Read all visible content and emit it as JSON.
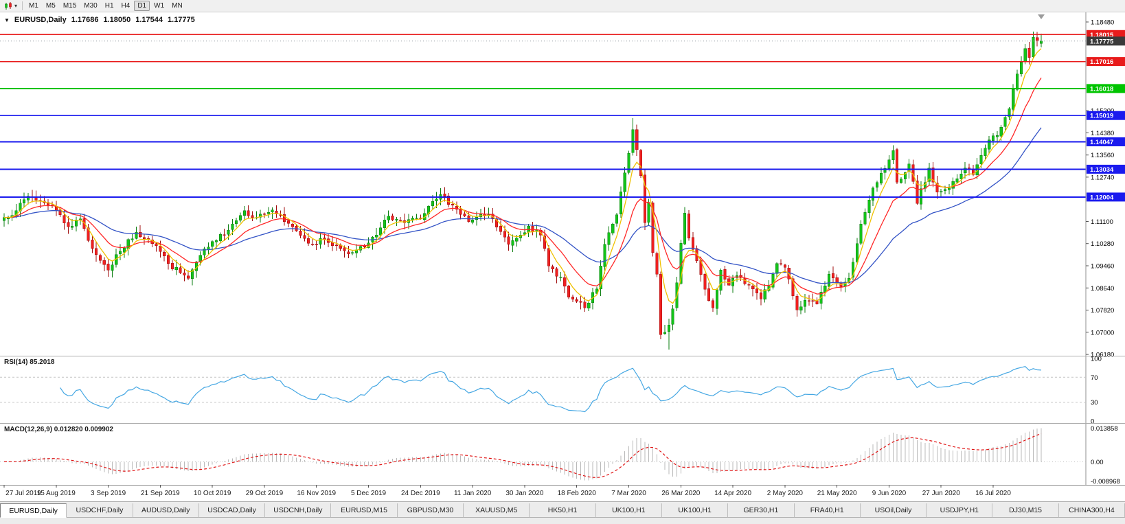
{
  "toolbar": {
    "timeframes": [
      "M1",
      "M5",
      "M15",
      "M30",
      "H1",
      "H4",
      "D1",
      "W1",
      "MN"
    ],
    "selected_timeframe": "D1"
  },
  "chart": {
    "title": "EURUSD,Daily",
    "ohlc": {
      "open": "1.17686",
      "high": "1.18050",
      "low": "1.17544",
      "close": "1.17775"
    }
  },
  "chart_data": {
    "type": "candlestick",
    "symbol": "EURUSD",
    "timeframe": "Daily",
    "grid": "off",
    "candle_count": 260,
    "label_every": 13,
    "seed": 7,
    "noise_amplitude": 0.0011,
    "ylim": [
      1.06132,
      1.18836
    ],
    "current_bid": 1.17775,
    "last_candle": {
      "open": 1.17686,
      "high": 1.1805,
      "low": 1.17544,
      "close": 1.17775
    },
    "horizontal_lines": [
      {
        "price": 1.18015,
        "color": "#e81b1b",
        "label": "1.18015"
      },
      {
        "price": 1.17016,
        "color": "#e81b1b",
        "label": "1.17016"
      },
      {
        "price": 1.16018,
        "color": "#00c400",
        "label": "1.16018"
      },
      {
        "price": 1.15019,
        "color": "#1a1aee",
        "label": "1.15019"
      },
      {
        "price": 1.14047,
        "color": "#1a1aee",
        "label": "1.14047"
      },
      {
        "price": 1.13034,
        "color": "#1a1aee",
        "label": "1.13034"
      },
      {
        "price": 1.12004,
        "color": "#1a1aee",
        "label": "1.12004"
      }
    ],
    "price_axis_ticks": [
      "1.18480",
      "1.17660",
      "1.16840",
      "1.16020",
      "1.15200",
      "1.14380",
      "1.13560",
      "1.12740",
      "1.11920",
      "1.11100",
      "1.10280",
      "1.09460",
      "1.08640",
      "1.07820",
      "1.07000",
      "1.06180"
    ],
    "time_axis_labels": [
      "27 Jul 2019",
      "15 Aug 2019",
      "3 Sep 2019",
      "21 Sep 2019",
      "10 Oct 2019",
      "29 Oct 2019",
      "16 Nov 2019",
      "5 Dec 2019",
      "24 Dec 2019",
      "11 Jan 2020",
      "30 Jan 2020",
      "18 Feb 2020",
      "7 Mar 2020",
      "26 Mar 2020",
      "14 Apr 2020",
      "2 May 2020",
      "21 May 2020",
      "9 Jun 2020",
      "27 Jun 2020",
      "16 Jul 2020"
    ],
    "price_waypoints": [
      [
        0,
        1.1125
      ],
      [
        3,
        1.115
      ],
      [
        6,
        1.1204
      ],
      [
        9,
        1.1185
      ],
      [
        12,
        1.117
      ],
      [
        16,
        1.109
      ],
      [
        19,
        1.112
      ],
      [
        22,
        1.101
      ],
      [
        26,
        1.093
      ],
      [
        29,
        1.1
      ],
      [
        33,
        1.107
      ],
      [
        36,
        1.1045
      ],
      [
        38,
        1.102
      ],
      [
        41,
        1.0955
      ],
      [
        44,
        1.092
      ],
      [
        46,
        1.09
      ],
      [
        49,
        1.0985
      ],
      [
        53,
        1.104
      ],
      [
        57,
        1.11
      ],
      [
        60,
        1.115
      ],
      [
        63,
        1.1125
      ],
      [
        67,
        1.1152
      ],
      [
        70,
        1.111
      ],
      [
        73,
        1.1075
      ],
      [
        77,
        1.1025
      ],
      [
        80,
        1.1045
      ],
      [
        84,
        1.101
      ],
      [
        87,
        1.0995
      ],
      [
        90,
        1.1015
      ],
      [
        93,
        1.106
      ],
      [
        96,
        1.113
      ],
      [
        100,
        1.1105
      ],
      [
        104,
        1.112
      ],
      [
        109,
        1.121
      ],
      [
        112,
        1.117
      ],
      [
        116,
        1.111
      ],
      [
        121,
        1.1135
      ],
      [
        126,
        1.1025
      ],
      [
        131,
        1.1093
      ],
      [
        134,
        1.106
      ],
      [
        136,
        1.0945
      ],
      [
        139,
        1.0905
      ],
      [
        141,
        1.083
      ],
      [
        145,
        1.079
      ],
      [
        148,
        1.086
      ],
      [
        150,
        1.1025
      ],
      [
        153,
        1.1135
      ],
      [
        155,
        1.129
      ],
      [
        157,
        1.145
      ],
      [
        159,
        1.128
      ],
      [
        160,
        1.1105
      ],
      [
        161,
        1.118
      ],
      [
        162,
        1.0995
      ],
      [
        163,
        1.0915
      ],
      [
        164,
        1.0692
      ],
      [
        165,
        1.07
      ],
      [
        166,
        1.0727
      ],
      [
        167,
        1.0787
      ],
      [
        168,
        1.0883
      ],
      [
        169,
        1.103
      ],
      [
        170,
        1.1141
      ],
      [
        171,
        1.1048
      ],
      [
        173,
        1.0965
      ],
      [
        175,
        1.0859
      ],
      [
        177,
        1.0791
      ],
      [
        179,
        1.093
      ],
      [
        181,
        1.0875
      ],
      [
        183,
        1.091
      ],
      [
        185,
        1.088
      ],
      [
        187,
        1.086
      ],
      [
        189,
        1.0823
      ],
      [
        191,
        1.087
      ],
      [
        193,
        1.0955
      ],
      [
        195,
        1.094
      ],
      [
        198,
        1.0783
      ],
      [
        200,
        1.0818
      ],
      [
        203,
        1.0805
      ],
      [
        206,
        1.0915
      ],
      [
        209,
        1.087
      ],
      [
        211,
        1.09
      ],
      [
        214,
        1.1101
      ],
      [
        217,
        1.1234
      ],
      [
        219,
        1.1289
      ],
      [
        222,
        1.1373
      ],
      [
        223,
        1.1255
      ],
      [
        226,
        1.1323
      ],
      [
        228,
        1.1177
      ],
      [
        231,
        1.1308
      ],
      [
        233,
        1.1218
      ],
      [
        236,
        1.1234
      ],
      [
        240,
        1.1308
      ],
      [
        242,
        1.1284
      ],
      [
        246,
        1.1412
      ],
      [
        248,
        1.1428
      ],
      [
        251,
        1.1527
      ],
      [
        252,
        1.1598
      ],
      [
        253,
        1.1656
      ],
      [
        255,
        1.175
      ],
      [
        256,
        1.1716
      ],
      [
        257,
        1.1791
      ],
      [
        258,
        1.178
      ],
      [
        259,
        1.17775
      ]
    ],
    "wick_overrides": [
      {
        "index": 157,
        "high": 1.1492
      },
      {
        "index": 166,
        "low": 1.0636
      }
    ],
    "overlays": [
      {
        "type": "ema",
        "period": 34,
        "color": "#3353c6",
        "name": "slow-ma-blue"
      },
      {
        "type": "ema",
        "period": 13,
        "color": "#ff2727",
        "name": "mid-ma-red"
      },
      {
        "type": "ema",
        "period": 5,
        "color": "#efc100",
        "name": "fast-ma-yellow"
      }
    ],
    "colors": {
      "bull": "#14c31a",
      "bull_border": "#0a7d0f",
      "bear": "#ef2020",
      "bear_border": "#a00d0d",
      "bid_line": "#9097a0",
      "bid_badge": "#3a3a3a"
    },
    "indicators": {
      "rsi": {
        "label": "RSI(14) 85.2018",
        "period": 14,
        "current": 85.2018,
        "levels": [
          70,
          30
        ],
        "axis_ticks": [
          100,
          70,
          30,
          0
        ],
        "color": "#45a7e3"
      },
      "macd": {
        "label": "MACD(12,26,9) 0.012820 0.009902",
        "fast": 12,
        "slow": 26,
        "signal": 9,
        "current_main": 0.01282,
        "current_signal": 0.009902,
        "axis_ticks": [
          "0.013858",
          "0.00",
          "-0.008968"
        ],
        "histogram_color": "#b9b9b9",
        "signal_color": "#e01414"
      }
    }
  },
  "tabs": {
    "active": "EURUSD,Daily",
    "items": [
      "EURUSD,Daily",
      "USDCHF,Daily",
      "AUDUSD,Daily",
      "USDCAD,Daily",
      "USDCNH,Daily",
      "EURUSD,M15",
      "GBPUSD,M30",
      "XAUUSD,M5",
      "HK50,H1",
      "UK100,H1",
      "UK100,H1",
      "GER30,H1",
      "FRA40,H1",
      "USOil,Daily",
      "USDJPY,H1",
      "DJ30,M15",
      "CHINA300,H4"
    ]
  }
}
